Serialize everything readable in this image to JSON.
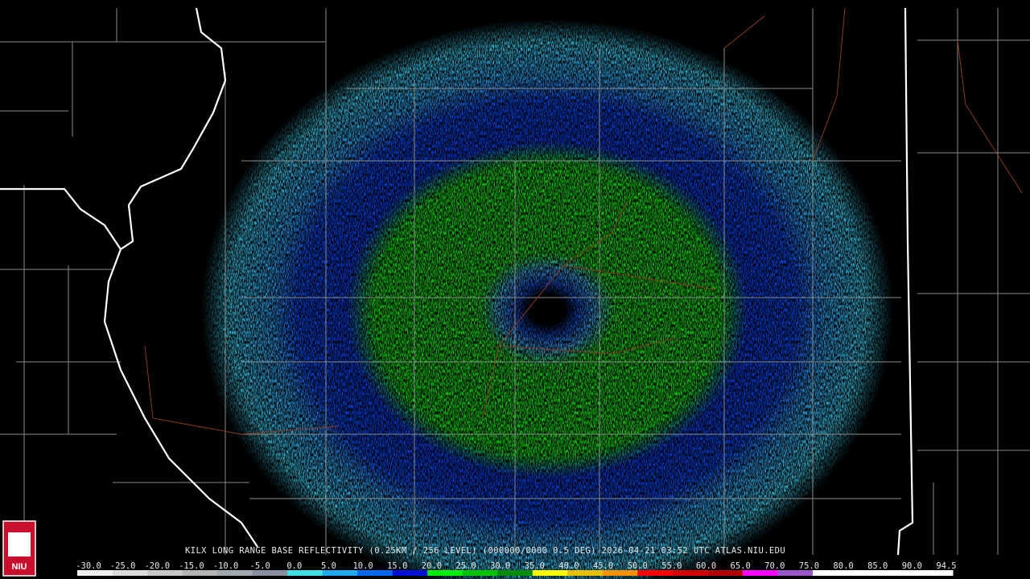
{
  "caption": "KILX LONG RANGE BASE REFLECTIVITY (0.25KM / 256 LEVEL) (000000/0000 0.5 DEG) 2026-04-21 03:52 UTC  ATLAS.NIU.EDU",
  "logo": "NIU",
  "colorbar": {
    "labels": [
      "-30.0",
      "-25.0",
      "-20.0",
      "-15.0",
      "-10.0",
      "-5.0",
      "0.0",
      "5.0",
      "10.0",
      "15.0",
      "20.0",
      "25.0",
      "30.0",
      "35.0",
      "40.0",
      "45.0",
      "50.0",
      "55.0",
      "60.0",
      "65.0",
      "70.0",
      "75.0",
      "80.0",
      "85.0",
      "90.0",
      "94.5"
    ],
    "colors": [
      "#f0f0f0",
      "#dcdcdc",
      "#c8c8c8",
      "#b4b4b4",
      "#a0a8b0",
      "#8890a0",
      "#40e0e8",
      "#20a8f0",
      "#0068f0",
      "#0010d8",
      "#00f000",
      "#00c400",
      "#008c00",
      "#ffff00",
      "#e8c000",
      "#ff9000",
      "#ff0000",
      "#d40000",
      "#b00000",
      "#ff00ff",
      "#9955c9",
      "#ffffff",
      "#ffffff",
      "#ffffff",
      "#ffffff"
    ]
  }
}
